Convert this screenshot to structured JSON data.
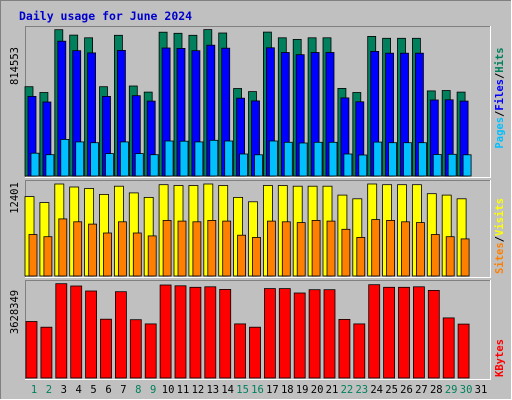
{
  "title": "Daily usage for June 2024",
  "colors": {
    "background": "#c0c0c0",
    "title": "#0000cc",
    "hits_bar": "#00805c",
    "files_bar": "#0000ff",
    "pages_bar": "#00c0ff",
    "visits_bar": "#ffff00",
    "sites_bar": "#ff8000",
    "kbytes_bar": "#ff0000",
    "weekend_day": "#00805c",
    "weekday": "#000000"
  },
  "chart_data": [
    {
      "type": "bar",
      "title": "Daily usage for June 2024",
      "panel": "hits-files-pages",
      "axis_max_label": "814553",
      "ylim": [
        0,
        814553
      ],
      "series_labels": [
        "Pages",
        "/",
        "Files",
        "/",
        "Hits"
      ],
      "categories": [
        "1",
        "2",
        "3",
        "4",
        "5",
        "6",
        "7",
        "8",
        "9",
        "10",
        "11",
        "12",
        "13",
        "14",
        "15",
        "16",
        "17",
        "18",
        "19",
        "20",
        "21",
        "22",
        "23",
        "24",
        "25",
        "26",
        "27",
        "28",
        "29",
        "30",
        "31"
      ],
      "series": [
        {
          "name": "Hits",
          "values": [
            498000,
            466000,
            816000,
            786000,
            771000,
            498000,
            785000,
            502000,
            468000,
            802000,
            796000,
            785000,
            817000,
            798000,
            488000,
            471000,
            803000,
            771000,
            762000,
            771000,
            771000,
            489000,
            466000,
            779000,
            768000,
            768000,
            768000,
            475000,
            477000,
            468000,
            0
          ]
        },
        {
          "name": "Files",
          "values": [
            444000,
            413000,
            752000,
            699000,
            687000,
            444000,
            701000,
            448000,
            418000,
            714000,
            712000,
            699000,
            730000,
            713000,
            434000,
            419000,
            715000,
            689000,
            677000,
            689000,
            689000,
            436000,
            414000,
            695000,
            685000,
            685000,
            685000,
            424000,
            425000,
            418000,
            0
          ]
        },
        {
          "name": "Pages",
          "values": [
            127000,
            119000,
            204000,
            190000,
            186000,
            125000,
            190000,
            125000,
            119000,
            195000,
            194000,
            190000,
            199000,
            195000,
            123000,
            118000,
            195000,
            188000,
            184000,
            188000,
            188000,
            123000,
            117000,
            189000,
            186000,
            186000,
            186000,
            120000,
            121000,
            118000,
            0
          ]
        }
      ]
    },
    {
      "type": "bar",
      "panel": "visits-sites",
      "axis_max_label": "12401",
      "ylim": [
        0,
        12401
      ],
      "series_labels": [
        "Sites",
        "/",
        "Visits"
      ],
      "categories": [
        "1",
        "2",
        "3",
        "4",
        "5",
        "6",
        "7",
        "8",
        "9",
        "10",
        "11",
        "12",
        "13",
        "14",
        "15",
        "16",
        "17",
        "18",
        "19",
        "20",
        "21",
        "22",
        "23",
        "24",
        "25",
        "26",
        "27",
        "28",
        "29",
        "30",
        "31"
      ],
      "series": [
        {
          "name": "Visits",
          "values": [
            10700,
            9900,
            12400,
            12000,
            11800,
            11000,
            12100,
            11200,
            10600,
            12300,
            12200,
            12200,
            12400,
            12200,
            10600,
            10000,
            12200,
            12200,
            12100,
            12100,
            12100,
            10900,
            10400,
            12400,
            12300,
            12300,
            12300,
            11100,
            10900,
            10400,
            0
          ]
        },
        {
          "name": "Sites",
          "values": [
            5600,
            5300,
            7700,
            7300,
            7000,
            5800,
            7300,
            5800,
            5400,
            7500,
            7400,
            7300,
            7500,
            7400,
            5500,
            5200,
            7400,
            7300,
            7200,
            7500,
            7400,
            6300,
            5200,
            7600,
            7500,
            7300,
            7200,
            5600,
            5300,
            5000,
            0
          ]
        }
      ]
    },
    {
      "type": "bar",
      "panel": "kbytes",
      "axis_max_label": "3628349",
      "ylim": [
        0,
        3628349
      ],
      "series_labels": [
        "KBytes"
      ],
      "categories": [
        "1",
        "2",
        "3",
        "4",
        "5",
        "6",
        "7",
        "8",
        "9",
        "10",
        "11",
        "12",
        "13",
        "14",
        "15",
        "16",
        "17",
        "18",
        "19",
        "20",
        "21",
        "22",
        "23",
        "24",
        "25",
        "26",
        "27",
        "28",
        "29",
        "30",
        "31"
      ],
      "series": [
        {
          "name": "KBytes",
          "values": [
            2180000,
            1960000,
            3640000,
            3550000,
            3360000,
            2270000,
            3330000,
            2250000,
            2090000,
            3590000,
            3560000,
            3500000,
            3520000,
            3420000,
            2090000,
            1960000,
            3450000,
            3450000,
            3280000,
            3410000,
            3410000,
            2260000,
            2090000,
            3600000,
            3500000,
            3500000,
            3520000,
            3380000,
            2320000,
            2080000,
            0
          ]
        }
      ]
    }
  ],
  "x_axis": {
    "days": [
      "1",
      "2",
      "3",
      "4",
      "5",
      "6",
      "7",
      "8",
      "9",
      "10",
      "11",
      "12",
      "13",
      "14",
      "15",
      "16",
      "17",
      "18",
      "19",
      "20",
      "21",
      "22",
      "23",
      "24",
      "25",
      "26",
      "27",
      "28",
      "29",
      "30",
      "31"
    ],
    "weekend": [
      true,
      true,
      false,
      false,
      false,
      false,
      false,
      true,
      true,
      false,
      false,
      false,
      false,
      false,
      true,
      true,
      false,
      false,
      false,
      false,
      false,
      true,
      true,
      false,
      false,
      false,
      false,
      false,
      true,
      true,
      false
    ]
  }
}
